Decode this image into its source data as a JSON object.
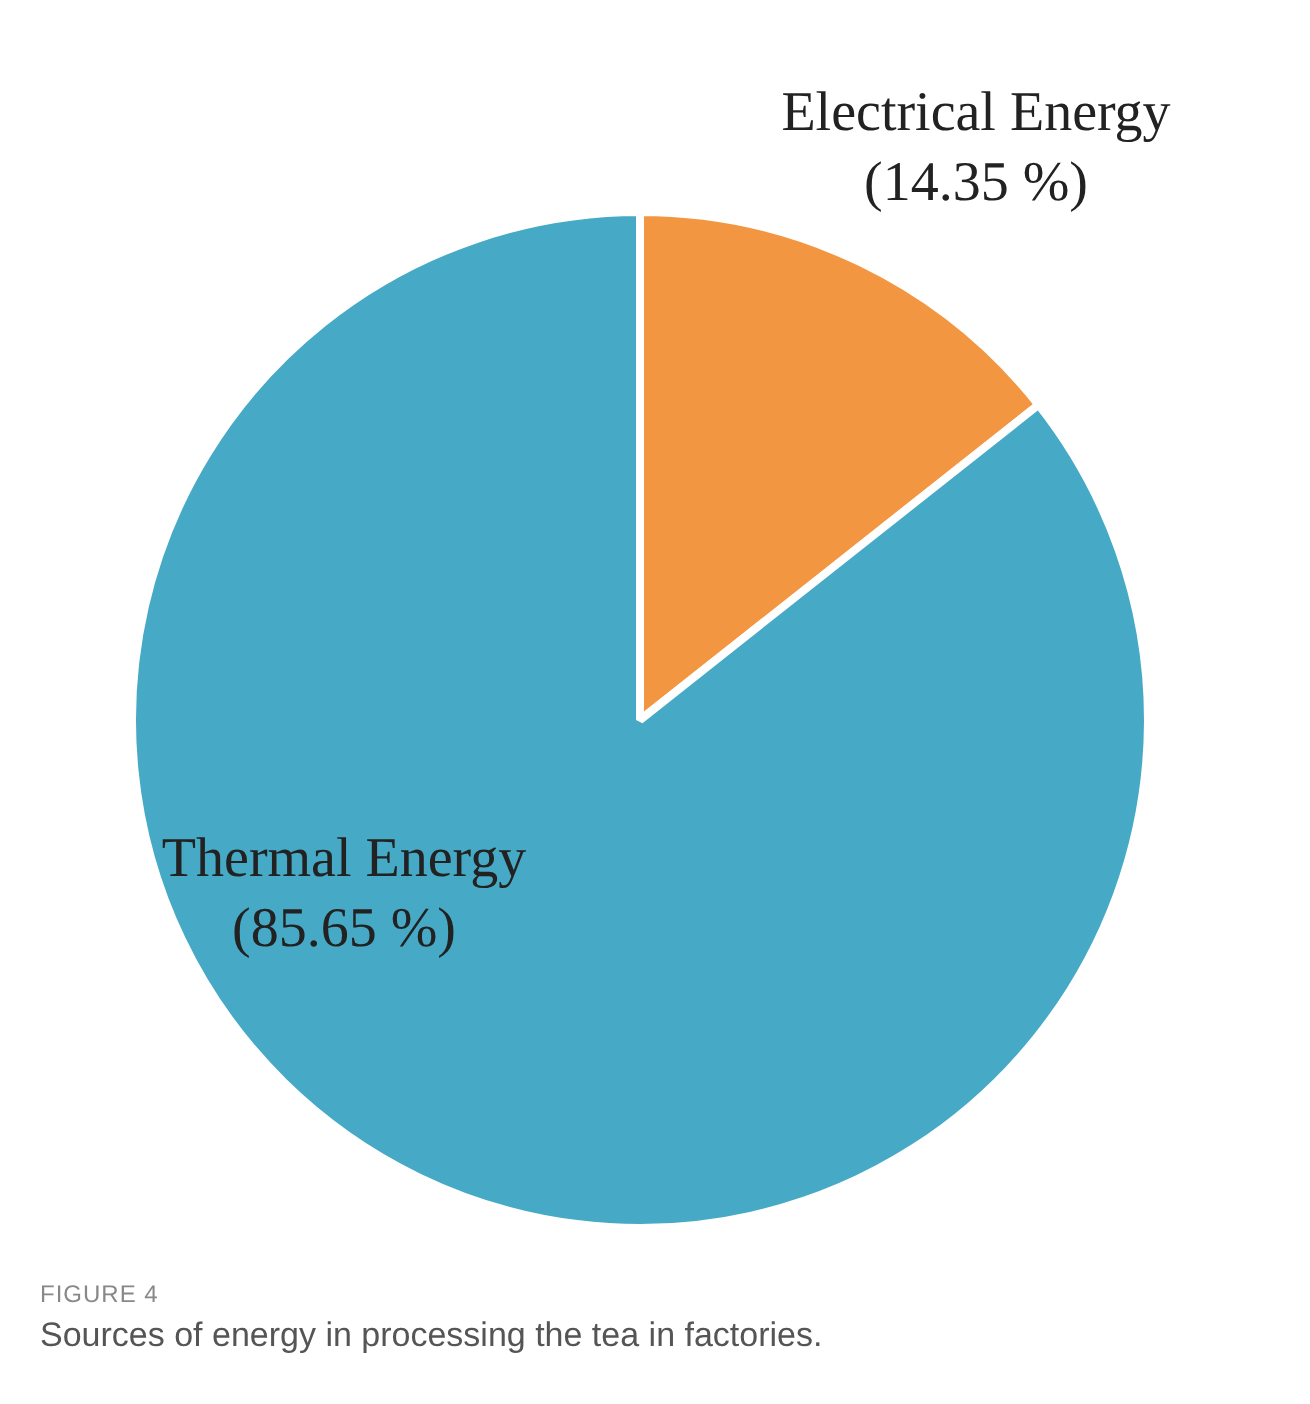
{
  "chart_data": {
    "type": "pie",
    "categories": [
      "Electrical Energy",
      "Thermal Energy"
    ],
    "values": [
      14.35,
      85.65
    ],
    "colors": [
      "#f39642",
      "#46a9c6"
    ],
    "value_labels": [
      "(14.35 %)",
      "(85.65 %)"
    ],
    "legend": false,
    "annotations": [
      "FIGURE 4",
      "Sources of energy in processing the tea in factories."
    ]
  }
}
